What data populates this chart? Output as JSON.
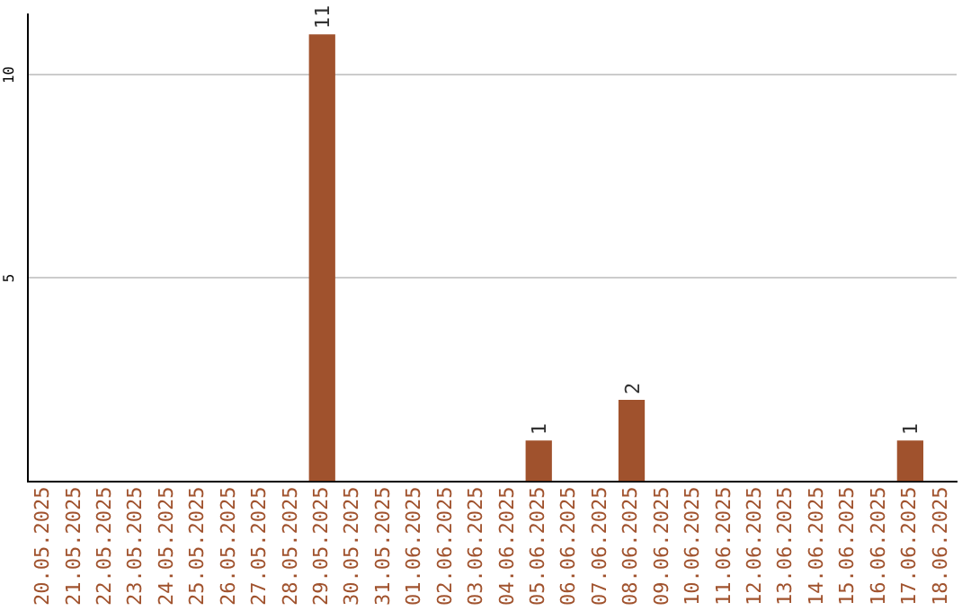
{
  "chart_data": {
    "type": "bar",
    "categories": [
      "20.05.2025",
      "21.05.2025",
      "22.05.2025",
      "23.05.2025",
      "24.05.2025",
      "25.05.2025",
      "26.05.2025",
      "27.05.2025",
      "28.05.2025",
      "29.05.2025",
      "30.05.2025",
      "31.05.2025",
      "01.06.2025",
      "02.06.2025",
      "03.06.2025",
      "04.06.2025",
      "05.06.2025",
      "06.06.2025",
      "07.06.2025",
      "08.06.2025",
      "09.06.2025",
      "10.06.2025",
      "11.06.2025",
      "12.06.2025",
      "13.06.2025",
      "14.06.2025",
      "15.06.2025",
      "16.06.2025",
      "17.06.2025",
      "18.06.2025"
    ],
    "values": [
      0,
      0,
      0,
      0,
      0,
      0,
      0,
      0,
      0,
      11,
      0,
      0,
      0,
      0,
      0,
      0,
      1,
      0,
      0,
      2,
      0,
      0,
      0,
      0,
      0,
      0,
      0,
      0,
      1,
      0
    ],
    "value_labels": [
      null,
      null,
      null,
      null,
      null,
      null,
      null,
      null,
      null,
      "11",
      null,
      null,
      null,
      null,
      null,
      null,
      "1",
      null,
      null,
      "2",
      null,
      null,
      null,
      null,
      null,
      null,
      null,
      null,
      "1",
      null
    ],
    "color": "#a0522d",
    "ylim": [
      0,
      11.5
    ],
    "yticks": [
      5,
      10
    ],
    "grid": "y",
    "legend": false
  }
}
